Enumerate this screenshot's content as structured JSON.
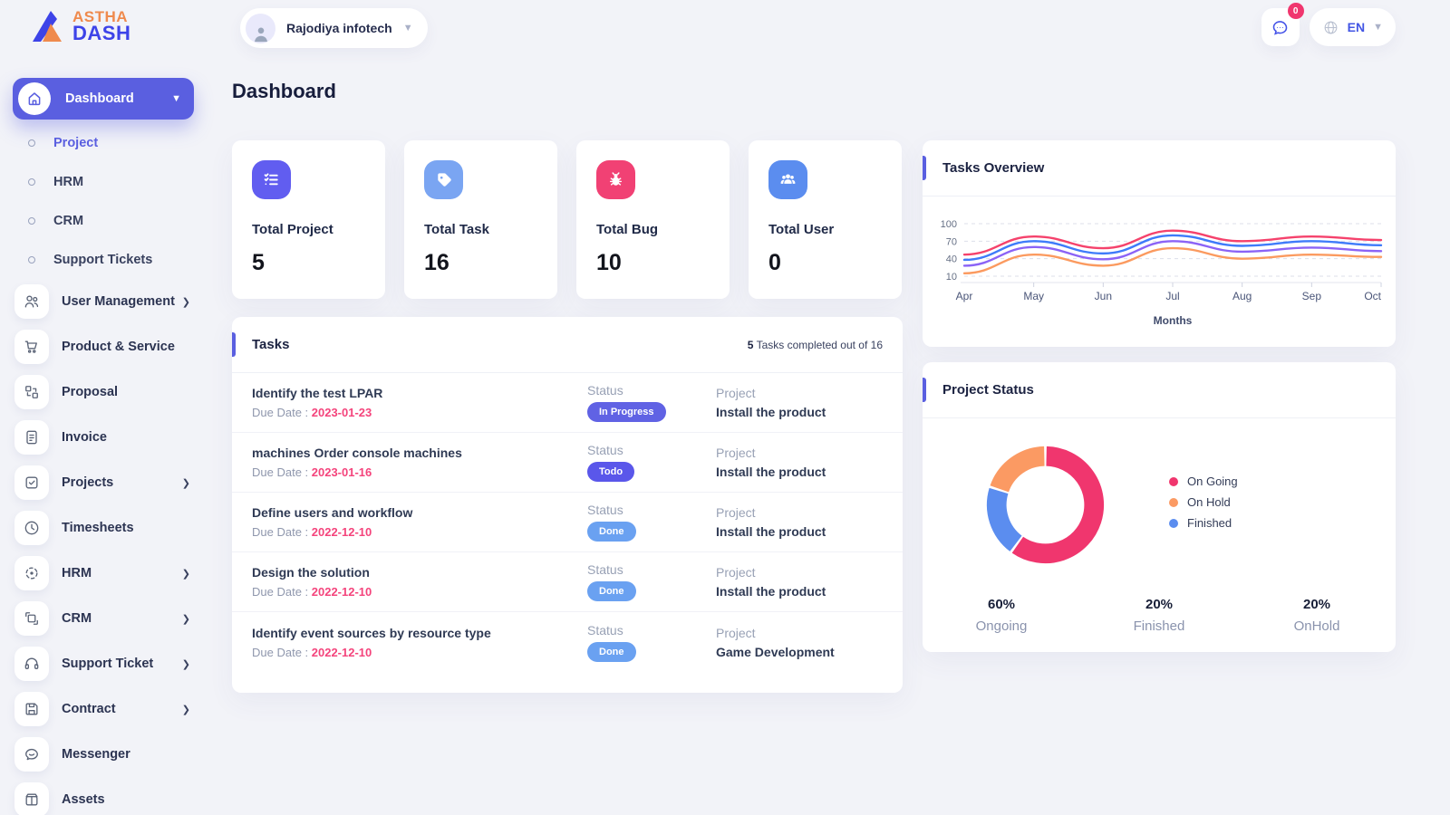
{
  "brand": {
    "line1": "ASTHA",
    "line2": "DASH"
  },
  "colors": {
    "primary": "#5a5fe0",
    "accent_bar": "#5a5fe0",
    "brand_orange": "#ef8a4d",
    "brand_blue": "#3d43e8",
    "chat_blue": "#4553e8",
    "chat_badge_bg": "#f0366e",
    "due_date": "#f4447c",
    "badge_in_progress": "#6062e4",
    "badge_todo": "#5a57ea",
    "badge_done": "#6aa1f1"
  },
  "header": {
    "workspace": "Rajodiya infotech",
    "chat_badge": "0",
    "language": "EN"
  },
  "sidebar": {
    "active_item": {
      "label": "Dashboard"
    },
    "sub_items": [
      {
        "label": "Project",
        "active": true
      },
      {
        "label": "HRM",
        "active": false
      },
      {
        "label": "CRM",
        "active": false
      },
      {
        "label": "Support Tickets",
        "active": false
      }
    ],
    "items": [
      {
        "label": "User Management",
        "icon": "users-icon",
        "chevron": true
      },
      {
        "label": "Product & Service",
        "icon": "cart-icon",
        "chevron": false
      },
      {
        "label": "Proposal",
        "icon": "proposal-icon",
        "chevron": false
      },
      {
        "label": "Invoice",
        "icon": "invoice-icon",
        "chevron": false
      },
      {
        "label": "Projects",
        "icon": "projects-icon",
        "chevron": true
      },
      {
        "label": "Timesheets",
        "icon": "clock-icon",
        "chevron": false
      },
      {
        "label": "HRM",
        "icon": "hrm-icon",
        "chevron": true
      },
      {
        "label": "CRM",
        "icon": "crm-icon",
        "chevron": true
      },
      {
        "label": "Support Ticket",
        "icon": "headset-icon",
        "chevron": true
      },
      {
        "label": "Contract",
        "icon": "contract-icon",
        "chevron": true
      },
      {
        "label": "Messenger",
        "icon": "messenger-icon",
        "chevron": false
      },
      {
        "label": "Assets",
        "icon": "assets-icon",
        "chevron": false
      }
    ]
  },
  "page": {
    "title": "Dashboard"
  },
  "stats": [
    {
      "label": "Total Project",
      "value": "5",
      "icon": "checklist-icon",
      "color": "#615df0"
    },
    {
      "label": "Total Task",
      "value": "16",
      "icon": "tag-icon",
      "color": "#7aa5f2"
    },
    {
      "label": "Total Bug",
      "value": "10",
      "icon": "bug-icon",
      "color": "#f14174"
    },
    {
      "label": "Total User",
      "value": "0",
      "icon": "users-icon",
      "color": "#5b8def"
    }
  ],
  "tasks_panel": {
    "title": "Tasks",
    "summary_count": "5",
    "summary_rest": " Tasks completed out of 16",
    "due_prefix": "Due Date : ",
    "col_status": "Status",
    "col_project": "Project",
    "rows": [
      {
        "name": "Identify the test LPAR",
        "due": "2023-01-23",
        "status": "In Progress",
        "project": "Install the product"
      },
      {
        "name": "machines Order console machines",
        "due": "2023-01-16",
        "status": "Todo",
        "project": "Install the product"
      },
      {
        "name": "Define users and workflow",
        "due": "2022-12-10",
        "status": "Done",
        "project": "Install the product"
      },
      {
        "name": "Design the solution",
        "due": "2022-12-10",
        "status": "Done",
        "project": "Install the product"
      },
      {
        "name": "Identify event sources by resource type",
        "due": "2022-12-10",
        "status": "Done",
        "project": "Game Development"
      }
    ]
  },
  "chart_data": [
    {
      "type": "line",
      "title": "Tasks Overview",
      "x": [
        "Apr",
        "May",
        "Jun",
        "Jul",
        "Aug",
        "Sep",
        "Oct"
      ],
      "xlabel": "Months",
      "yticks": [
        10,
        40,
        70,
        100
      ],
      "ylim": [
        10,
        100
      ],
      "grid": true,
      "legend_position": "none",
      "series": [
        {
          "name": "series_1",
          "color": "#f5426c",
          "values": [
            47,
            78,
            58,
            88,
            70,
            78,
            72
          ]
        },
        {
          "name": "series_2",
          "color": "#3e7bfa",
          "values": [
            38,
            70,
            49,
            80,
            62,
            70,
            63
          ]
        },
        {
          "name": "series_3",
          "color": "#8b63f6",
          "values": [
            28,
            60,
            39,
            70,
            52,
            59,
            53
          ]
        },
        {
          "name": "series_4",
          "color": "#fb9a5f",
          "values": [
            15,
            47,
            28,
            58,
            40,
            47,
            43
          ]
        }
      ]
    },
    {
      "type": "pie",
      "title": "Project Status",
      "donut": true,
      "slices": [
        {
          "label": "On Going",
          "value": 60,
          "color": "#f0366e"
        },
        {
          "label": "Finished",
          "value": 20,
          "color": "#5b8def"
        },
        {
          "label": "On Hold",
          "value": 20,
          "color": "#fb9a63"
        }
      ],
      "legend": [
        {
          "label": "On Going",
          "color": "#f0366e"
        },
        {
          "label": "On Hold",
          "color": "#fb9a63"
        },
        {
          "label": "Finished",
          "color": "#5b8def"
        }
      ],
      "stats": [
        {
          "pct": "60%",
          "label": "Ongoing"
        },
        {
          "pct": "20%",
          "label": "Finished"
        },
        {
          "pct": "20%",
          "label": "OnHold"
        }
      ]
    }
  ]
}
